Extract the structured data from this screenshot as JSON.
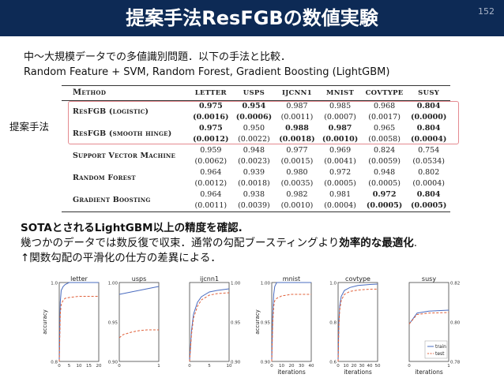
{
  "slide": {
    "title": "提案手法ResFGBの数値実験",
    "number": "152"
  },
  "intro": {
    "line1": "中〜大規模データでの多値識別問題．以下の手法と比較．",
    "line2": "Random Feature + SVM, Random Forest, Gradient Boosting (LightGBM)"
  },
  "proposed_label": "提案手法",
  "table": {
    "headers": [
      "Method",
      "LETTER",
      "USPS",
      "IJCNN1",
      "MNIST",
      "COVTYPE",
      "SUSY"
    ],
    "rows": [
      {
        "method": "ResFGB (logistic)",
        "vals": [
          "0.975",
          "0.954",
          "0.987",
          "0.985",
          "0.968",
          "0.804"
        ],
        "errs": [
          "(0.0016)",
          "(0.0006)",
          "(0.0011)",
          "(0.0007)",
          "(0.0017)",
          "(0.0000)"
        ],
        "bold": [
          true,
          true,
          false,
          false,
          false,
          true
        ]
      },
      {
        "method": "ResFGB (smooth hinge)",
        "vals": [
          "0.975",
          "0.950",
          "0.988",
          "0.987",
          "0.965",
          "0.804"
        ],
        "errs": [
          "(0.0012)",
          "(0.0022)",
          "(0.0018)",
          "(0.0010)",
          "(0.0058)",
          "(0.0004)"
        ],
        "bold": [
          true,
          false,
          true,
          true,
          false,
          true
        ]
      },
      {
        "method": "Support Vector Machine",
        "vals": [
          "0.959",
          "0.948",
          "0.977",
          "0.969",
          "0.824",
          "0.754"
        ],
        "errs": [
          "(0.0062)",
          "(0.0023)",
          "(0.0015)",
          "(0.0041)",
          "(0.0059)",
          "(0.0534)"
        ],
        "bold": [
          false,
          false,
          false,
          false,
          false,
          false
        ]
      },
      {
        "method": "Random Forest",
        "vals": [
          "0.964",
          "0.939",
          "0.980",
          "0.972",
          "0.948",
          "0.802"
        ],
        "errs": [
          "(0.0012)",
          "(0.0018)",
          "(0.0035)",
          "(0.0005)",
          "(0.0005)",
          "(0.0004)"
        ],
        "bold": [
          false,
          false,
          false,
          false,
          false,
          false
        ]
      },
      {
        "method": "Gradient Boosting",
        "vals": [
          "0.964",
          "0.938",
          "0.982",
          "0.981",
          "0.972",
          "0.804"
        ],
        "errs": [
          "(0.0011)",
          "(0.0039)",
          "(0.0010)",
          "(0.0004)",
          "(0.0005)",
          "(0.0005)"
        ],
        "bold": [
          false,
          false,
          false,
          false,
          true,
          true
        ]
      }
    ]
  },
  "summary": {
    "line1": "SOTAとされるLightGBM以上の精度を確認.",
    "line2_pre": "幾つかのデータでは数反復で収束．通常の勾配ブースティングより",
    "line2_bold": "効率的な最適化",
    "line2_post": ".",
    "line3": "↑関数勾配の平滑化の仕方の差異による．"
  },
  "chart_data": [
    {
      "type": "line",
      "title": "letter",
      "ylabel": "accuracy",
      "xlabel": "",
      "xlim": [
        0,
        20
      ],
      "ylim": [
        0.8,
        1.0
      ],
      "xticks": [
        "0",
        "5",
        "10",
        "15",
        "20"
      ],
      "yticks": [
        "0.8",
        "1.0"
      ],
      "series": [
        {
          "name": "train",
          "x": [
            0,
            0.5,
            1,
            2,
            3,
            5,
            10,
            15,
            20
          ],
          "y": [
            0.8,
            0.95,
            0.98,
            0.99,
            0.995,
            1.0,
            1.0,
            1.0,
            1.0
          ]
        },
        {
          "name": "test",
          "x": [
            0,
            0.5,
            1,
            2,
            3,
            5,
            10,
            15,
            20
          ],
          "y": [
            0.8,
            0.92,
            0.945,
            0.955,
            0.96,
            0.962,
            0.965,
            0.965,
            0.965
          ]
        }
      ]
    },
    {
      "type": "line",
      "title": "usps",
      "ylabel": "",
      "xlabel": "",
      "xlim": [
        0,
        1
      ],
      "ylim": [
        0.9,
        1.0
      ],
      "xticks": [
        "0",
        "1"
      ],
      "yticks": [
        "0.90",
        "0.95",
        "1.00"
      ],
      "series": [
        {
          "name": "train",
          "x": [
            0,
            1
          ],
          "y": [
            0.985,
            0.995
          ]
        },
        {
          "name": "test",
          "x": [
            0,
            0.1,
            0.3,
            0.5,
            0.7,
            1
          ],
          "y": [
            0.93,
            0.934,
            0.937,
            0.939,
            0.94,
            0.94
          ]
        }
      ]
    },
    {
      "type": "line",
      "title": "ijcnn1",
      "ylabel": "",
      "xlabel": "",
      "xlim": [
        0,
        10
      ],
      "ylim": [
        0.9,
        1.0
      ],
      "xticks": [
        "0",
        "5",
        "10"
      ],
      "yticks": [
        "0.90",
        "0.95",
        "1.00"
      ],
      "series": [
        {
          "name": "train",
          "x": [
            0,
            0.5,
            1,
            2,
            3,
            5,
            7,
            10
          ],
          "y": [
            0.9,
            0.94,
            0.96,
            0.975,
            0.982,
            0.988,
            0.99,
            0.992
          ]
        },
        {
          "name": "test",
          "x": [
            0,
            0.5,
            1,
            2,
            3,
            5,
            7,
            10
          ],
          "y": [
            0.9,
            0.935,
            0.955,
            0.97,
            0.978,
            0.984,
            0.986,
            0.987
          ]
        }
      ]
    },
    {
      "type": "line",
      "title": "mnist",
      "ylabel": "accuracy",
      "xlabel": "iterations",
      "xlim": [
        0,
        40
      ],
      "ylim": [
        0.9,
        1.0
      ],
      "xticks": [
        "0",
        "10",
        "20",
        "30",
        "40"
      ],
      "yticks": [
        "0.90",
        "0.95",
        "1.00"
      ],
      "series": [
        {
          "name": "train",
          "x": [
            0,
            1,
            2,
            3,
            5,
            10,
            20,
            30,
            40
          ],
          "y": [
            0.9,
            0.96,
            0.985,
            0.995,
            1.0,
            1.0,
            1.0,
            1.0,
            1.0
          ]
        },
        {
          "name": "test",
          "x": [
            0,
            1,
            2,
            3,
            5,
            10,
            20,
            30,
            40
          ],
          "y": [
            0.9,
            0.95,
            0.97,
            0.977,
            0.98,
            0.983,
            0.985,
            0.985,
            0.985
          ]
        }
      ]
    },
    {
      "type": "line",
      "title": "covtype",
      "ylabel": "",
      "xlabel": "iterations",
      "xlim": [
        0,
        50
      ],
      "ylim": [
        0.6,
        1.0
      ],
      "xticks": [
        "0",
        "10",
        "20",
        "30",
        "40",
        "50"
      ],
      "yticks": [
        "0.6",
        "0.8",
        "1.0"
      ],
      "series": [
        {
          "name": "train",
          "x": [
            0,
            1,
            2,
            4,
            8,
            15,
            25,
            40,
            50
          ],
          "y": [
            0.6,
            0.8,
            0.88,
            0.93,
            0.96,
            0.975,
            0.985,
            0.99,
            0.992
          ]
        },
        {
          "name": "test",
          "x": [
            0,
            1,
            2,
            4,
            8,
            15,
            25,
            40,
            50
          ],
          "y": [
            0.6,
            0.78,
            0.86,
            0.91,
            0.94,
            0.955,
            0.962,
            0.966,
            0.967
          ]
        }
      ]
    },
    {
      "type": "line",
      "title": "susy",
      "ylabel": "",
      "xlabel": "iterations",
      "xlim": [
        0,
        1
      ],
      "ylim": [
        0.78,
        0.82
      ],
      "xticks": [
        "0",
        "1"
      ],
      "yticks": [
        "0.78",
        "0.80",
        "0.82"
      ],
      "legend": "bottom-right",
      "series": [
        {
          "name": "train",
          "x": [
            0,
            0.2,
            0.5,
            0.8,
            1
          ],
          "y": [
            0.799,
            0.8045,
            0.8055,
            0.8058,
            0.806
          ]
        },
        {
          "name": "test",
          "x": [
            0,
            0.2,
            0.5,
            0.8,
            1
          ],
          "y": [
            0.799,
            0.8038,
            0.8045,
            0.8047,
            0.8048
          ]
        }
      ]
    }
  ],
  "colors": {
    "title_bar": "#0d2a55",
    "highlight": "#e48a90",
    "train": "#4a6cc0",
    "test": "#e0603a"
  }
}
